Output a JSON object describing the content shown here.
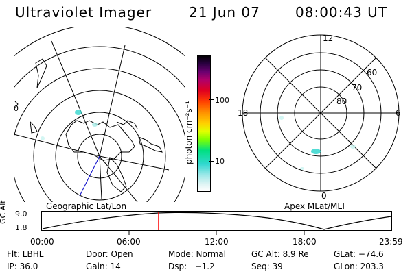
{
  "header": {
    "instrument": "Ultraviolet Imager",
    "date": "21 Jun 07",
    "time": "08:00:43 UT"
  },
  "colorbar": {
    "unit_label": "photon cm⁻²s⁻¹",
    "ticks": [
      "100",
      "10"
    ],
    "scale": "log"
  },
  "left_panel": {
    "caption": "Geographic Lat/Lon",
    "edge_mark": "0"
  },
  "right_panel": {
    "caption": "Apex MLat/MLT",
    "mlt_labels": [
      "12",
      "18",
      "6",
      "0"
    ],
    "mlat_labels": [
      "60",
      "70",
      "80"
    ]
  },
  "timeline": {
    "ylabel": "GC Alt",
    "yticks": [
      "9.0",
      "1.8"
    ],
    "xticks": [
      "00:00",
      "06:00",
      "12:00",
      "18:00",
      "23:59"
    ],
    "current_time_fraction": 0.334,
    "marker_color": "#ff0000"
  },
  "status": {
    "flt": "Flt: LBHL",
    "door": "Door: Open",
    "mode": "Mode: Normal",
    "gc_alt": "GC Alt: 8.9 Re",
    "glat": "GLat: −74.6",
    "ip": "IP: 36.0",
    "gain": "Gain: 14",
    "dsp": "Dsp:   −1.2",
    "seq": "Seq: 39",
    "glon": "GLon: 203.3"
  },
  "colors": {
    "emission": "#40d8d0",
    "geo_line": "#0000c8"
  }
}
